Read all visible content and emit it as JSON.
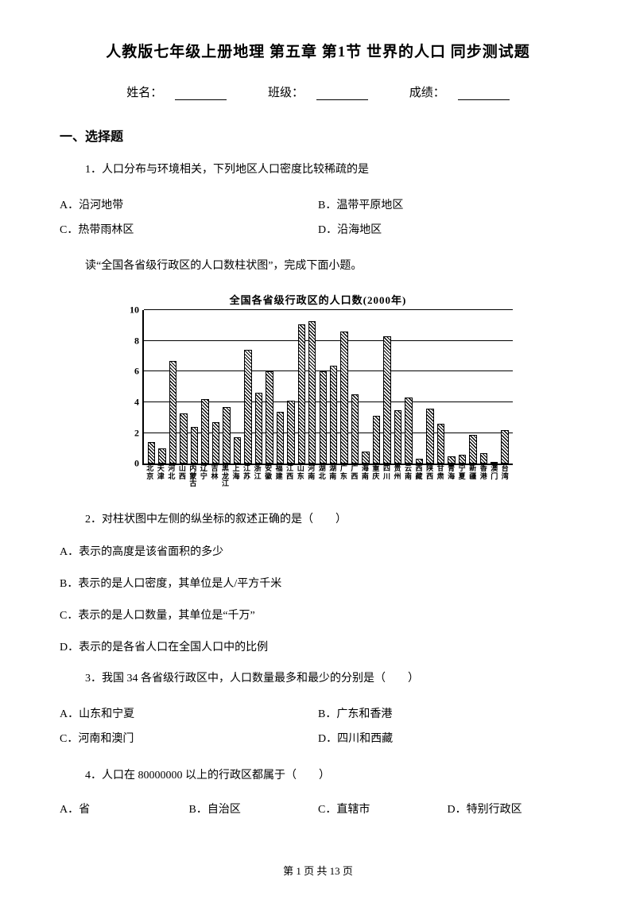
{
  "title": "人教版七年级上册地理 第五章 第1节 世界的人口 同步测试题",
  "info": {
    "name_label": "姓名：",
    "class_label": "班级：",
    "score_label": "成绩："
  },
  "section1_header": "一、选择题",
  "q1": {
    "text": "1．人口分布与环境相关，下列地区人口密度比较稀疏的是",
    "a": "A．沿河地带",
    "b": "B．温带平原地区",
    "c": "C．热带雨林区",
    "d": "D．沿海地区"
  },
  "context1": "读“全国各省级行政区的人口数柱状图”，完成下面小题。",
  "chart": {
    "title": "全国各省级行政区的人口数(2000年)",
    "ylim": [
      0,
      10
    ],
    "ytick_step": 2,
    "yticks": [
      0,
      2,
      4,
      6,
      8,
      10
    ],
    "grid_color": "#000000",
    "background_color": "#ffffff",
    "bar_fill": "hatch-diagonal",
    "categories": [
      "北京",
      "天津",
      "河北",
      "山西",
      "内蒙古",
      "辽宁",
      "吉林",
      "黑龙江",
      "上海",
      "江苏",
      "浙江",
      "安徽",
      "福建",
      "江西",
      "山东",
      "河南",
      "湖北",
      "湖南",
      "广东",
      "广西",
      "海南",
      "重庆",
      "四川",
      "贵州",
      "云南",
      "西藏",
      "陕西",
      "甘肃",
      "青海",
      "宁夏",
      "新疆",
      "香港",
      "澳门",
      "台湾"
    ],
    "values": [
      1.4,
      1.0,
      6.7,
      3.3,
      2.4,
      4.2,
      2.7,
      3.7,
      1.7,
      7.4,
      4.6,
      6.0,
      3.4,
      4.1,
      9.1,
      9.3,
      6.0,
      6.4,
      8.6,
      4.5,
      0.8,
      3.1,
      8.3,
      3.5,
      4.3,
      0.3,
      3.6,
      2.6,
      0.5,
      0.6,
      1.9,
      0.7,
      0.05,
      2.2
    ]
  },
  "q2": {
    "text": "2．对柱状图中左侧的纵坐标的叙述正确的是（　　）",
    "a": "A．表示的高度是该省面积的多少",
    "b": "B．表示的是人口密度，其单位是人/平方千米",
    "c": "C．表示的是人口数量，其单位是“千万”",
    "d": "D．表示的是各省人口在全国人口中的比例"
  },
  "q3": {
    "text": "3．我国 34 各省级行政区中，人口数量最多和最少的分别是（　　）",
    "a": "A．山东和宁夏",
    "b": "B．广东和香港",
    "c": "C．河南和澳门",
    "d": "D．四川和西藏"
  },
  "q4": {
    "text": "4．人口在 80000000 以上的行政区都属于（　　）",
    "a": "A．省",
    "b": "B．自治区",
    "c": "C．直辖市",
    "d": "D．特别行政区"
  },
  "footer": "第 1 页 共 13 页"
}
